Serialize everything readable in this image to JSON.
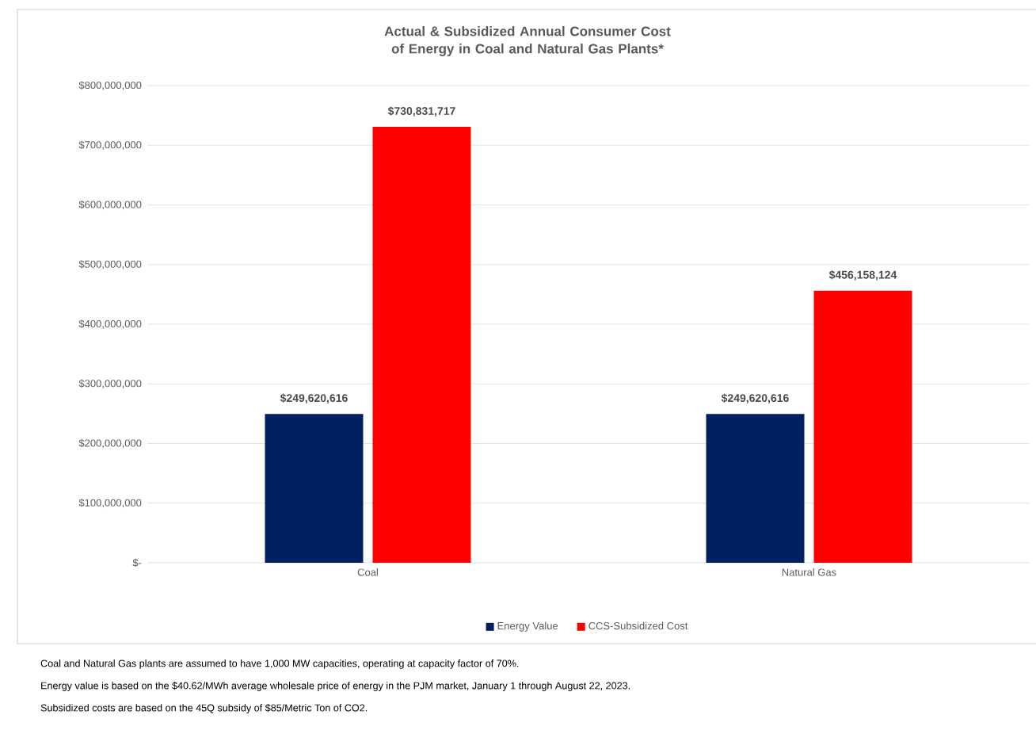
{
  "chart_data": {
    "type": "bar",
    "title": "Actual & Subsidized Annual Consumer Cost of Energy in Coal and Natural Gas Plants*",
    "categories": [
      "Coal",
      "Natural Gas"
    ],
    "series": [
      {
        "name": "Energy Value",
        "color": "#002060",
        "values": [
          249620616,
          249620616
        ],
        "value_labels": [
          "$249,620,616",
          "$249,620,616"
        ]
      },
      {
        "name": "CCS-Subsidized Cost",
        "color": "#ff0000",
        "values": [
          730831717,
          456158124
        ],
        "value_labels": [
          "$730,831,717",
          "$456,158,124"
        ]
      }
    ],
    "ylim": [
      0,
      800000000
    ],
    "yticks": [
      {
        "value": 0,
        "label": "$-"
      },
      {
        "value": 100000000,
        "label": "$100,000,000"
      },
      {
        "value": 200000000,
        "label": "$200,000,000"
      },
      {
        "value": 300000000,
        "label": "$300,000,000"
      },
      {
        "value": 400000000,
        "label": "$400,000,000"
      },
      {
        "value": 500000000,
        "label": "$500,000,000"
      },
      {
        "value": 600000000,
        "label": "$600,000,000"
      },
      {
        "value": 700000000,
        "label": "$700,000,000"
      },
      {
        "value": 800000000,
        "label": "$800,000,000"
      }
    ],
    "grid": "y",
    "legend": "bottom",
    "annotations": [
      "Coal and Natural Gas plants are assumed to have 1,000 MW capacities, operating at capacity factor of 70%.",
      "Energy value is based on the $40.62/MWh average wholesale price of energy in the PJM market, January 1 through August 22, 2023.",
      "Subsidized costs are based on the 45Q subsidy of $85/Metric Ton of CO2."
    ]
  }
}
